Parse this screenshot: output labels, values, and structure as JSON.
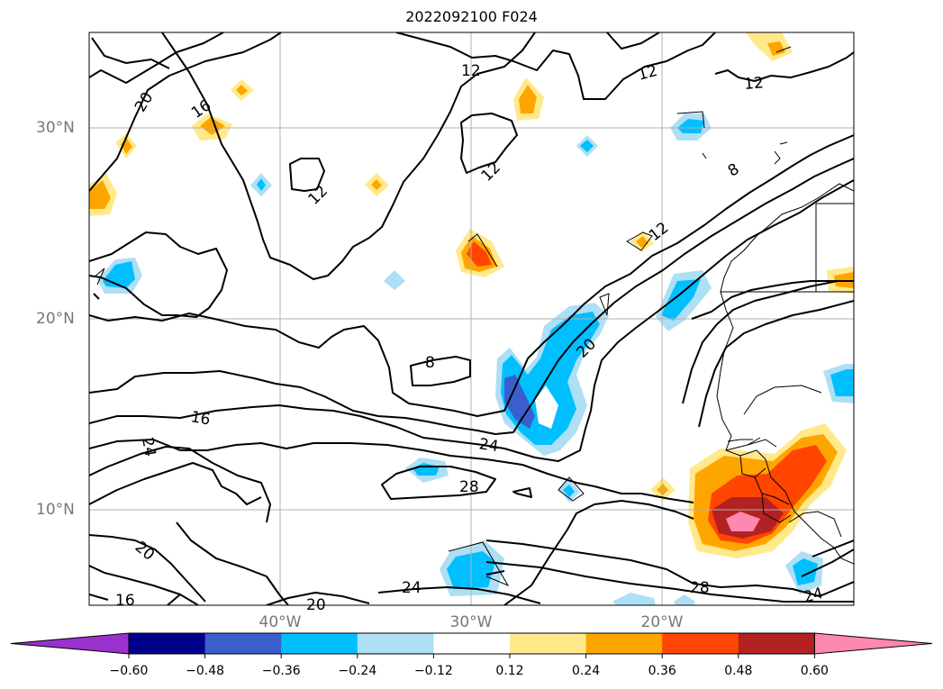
{
  "title": "2022092100 F024",
  "lat_labels": [
    "30°N",
    "20°N",
    "10°N"
  ],
  "lon_labels": [
    "40°W",
    "30°W",
    "20°W"
  ],
  "colorbar": {
    "ticks": [
      "−0.60",
      "−0.48",
      "−0.36",
      "−0.24",
      "−0.12",
      "0.12",
      "0.24",
      "0.36",
      "0.48",
      "0.60"
    ],
    "colors": [
      "#9932CC",
      "#00008B",
      "#3A5FCD",
      "#00BFFF",
      "#ADDFF5",
      "#FFFFFF",
      "#FFE98A",
      "#FFA500",
      "#FF4500",
      "#B22222",
      "#FF88B0"
    ]
  },
  "contour_labels": [
    "20",
    "16",
    "12",
    "12",
    "12",
    "12",
    "12",
    "8",
    "12",
    "20",
    "8",
    "16",
    "24",
    "24",
    "28",
    "20",
    "16",
    "20",
    "24",
    "28",
    "24"
  ],
  "chart_data": {
    "type": "heatmap",
    "title": "2022092100 F024",
    "x_ticks": [
      "40°W",
      "30°W",
      "20°W"
    ],
    "y_ticks": [
      "30°N",
      "20°N",
      "10°N"
    ],
    "xlim_deg": [
      -50,
      -10
    ],
    "ylim_deg": [
      5,
      35
    ],
    "grid": true,
    "contour_levels": [
      8,
      12,
      16,
      20,
      24,
      28
    ],
    "colorbar_levels": [
      -0.6,
      -0.48,
      -0.36,
      -0.24,
      -0.12,
      0.12,
      0.24,
      0.36,
      0.48,
      0.6
    ],
    "colorbar_extend": "both",
    "colorbar_position": "bottom"
  }
}
